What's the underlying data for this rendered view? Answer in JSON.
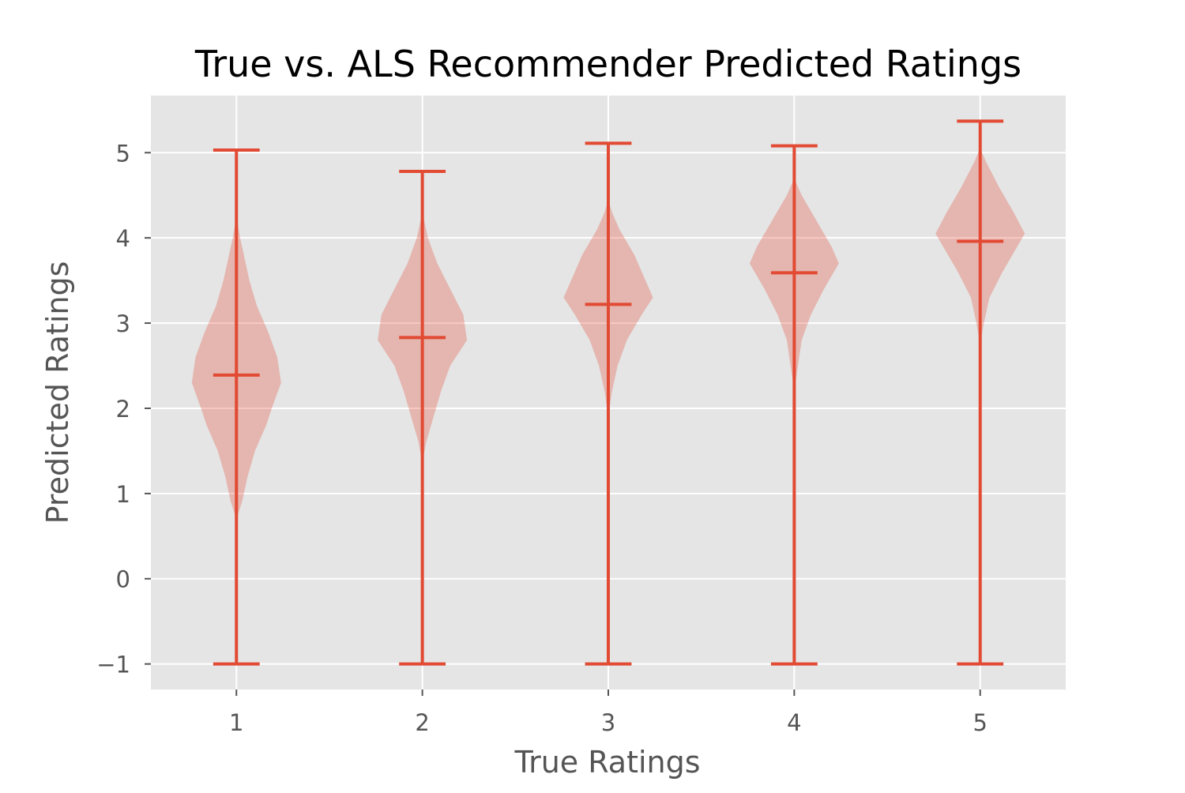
{
  "chart_data": {
    "type": "violin",
    "title": "True vs. ALS Recommender Predicted Ratings",
    "xlabel": "True Ratings",
    "ylabel": "Predicted Ratings",
    "xlim": [
      0.54,
      5.46
    ],
    "ylim": [
      -1.3,
      5.67
    ],
    "x_ticks": [
      1,
      2,
      3,
      4,
      5
    ],
    "x_tick_labels": [
      "1",
      "2",
      "3",
      "4",
      "5"
    ],
    "y_ticks": [
      -1,
      0,
      1,
      2,
      3,
      4,
      5
    ],
    "y_tick_labels": [
      "−1",
      "0",
      "1",
      "2",
      "3",
      "4",
      "5"
    ],
    "grid": true,
    "style": "ggplot",
    "colors": {
      "plot_background": "#e5e5e5",
      "grid": "#ffffff",
      "violin_body": "#e24a33",
      "violin_body_alpha": 0.3,
      "violin_lines": "#e24a33",
      "text": "#555555",
      "title": "#000000"
    },
    "violins": [
      {
        "category": 1,
        "min": -1.0,
        "max": 5.03,
        "mean": 2.39,
        "body_range": [
          0.7,
          4.25
        ],
        "profile": [
          [
            0.7,
            0.0
          ],
          [
            0.9,
            0.03
          ],
          [
            1.2,
            0.06
          ],
          [
            1.5,
            0.1
          ],
          [
            1.8,
            0.16
          ],
          [
            2.0,
            0.19
          ],
          [
            2.3,
            0.24
          ],
          [
            2.6,
            0.22
          ],
          [
            2.9,
            0.17
          ],
          [
            3.2,
            0.11
          ],
          [
            3.5,
            0.07
          ],
          [
            3.8,
            0.04
          ],
          [
            4.0,
            0.02
          ],
          [
            4.25,
            0.0
          ]
        ]
      },
      {
        "category": 2,
        "min": -1.0,
        "max": 4.78,
        "mean": 2.83,
        "body_range": [
          1.35,
          4.35
        ],
        "profile": [
          [
            1.35,
            0.0
          ],
          [
            1.6,
            0.02
          ],
          [
            1.9,
            0.06
          ],
          [
            2.2,
            0.1
          ],
          [
            2.5,
            0.15
          ],
          [
            2.8,
            0.24
          ],
          [
            3.1,
            0.22
          ],
          [
            3.4,
            0.15
          ],
          [
            3.7,
            0.08
          ],
          [
            4.0,
            0.03
          ],
          [
            4.2,
            0.01
          ],
          [
            4.35,
            0.0
          ]
        ]
      },
      {
        "category": 3,
        "min": -1.0,
        "max": 5.11,
        "mean": 3.22,
        "body_range": [
          1.9,
          4.45
        ],
        "profile": [
          [
            1.9,
            0.0
          ],
          [
            2.2,
            0.02
          ],
          [
            2.5,
            0.05
          ],
          [
            2.8,
            0.1
          ],
          [
            3.1,
            0.18
          ],
          [
            3.3,
            0.24
          ],
          [
            3.5,
            0.2
          ],
          [
            3.8,
            0.14
          ],
          [
            4.1,
            0.06
          ],
          [
            4.3,
            0.02
          ],
          [
            4.45,
            0.0
          ]
        ]
      },
      {
        "category": 4,
        "min": -1.0,
        "max": 5.08,
        "mean": 3.59,
        "body_range": [
          2.2,
          4.7
        ],
        "profile": [
          [
            2.2,
            0.0
          ],
          [
            2.5,
            0.02
          ],
          [
            2.8,
            0.04
          ],
          [
            3.1,
            0.09
          ],
          [
            3.4,
            0.16
          ],
          [
            3.7,
            0.24
          ],
          [
            3.9,
            0.2
          ],
          [
            4.2,
            0.12
          ],
          [
            4.5,
            0.04
          ],
          [
            4.7,
            0.0
          ]
        ]
      },
      {
        "category": 5,
        "min": -1.0,
        "max": 5.37,
        "mean": 3.96,
        "body_range": [
          2.75,
          5.05
        ],
        "profile": [
          [
            2.75,
            0.0
          ],
          [
            3.0,
            0.02
          ],
          [
            3.3,
            0.05
          ],
          [
            3.6,
            0.12
          ],
          [
            3.9,
            0.2
          ],
          [
            4.05,
            0.24
          ],
          [
            4.3,
            0.18
          ],
          [
            4.6,
            0.1
          ],
          [
            4.9,
            0.03
          ],
          [
            5.05,
            0.0
          ]
        ]
      }
    ]
  }
}
